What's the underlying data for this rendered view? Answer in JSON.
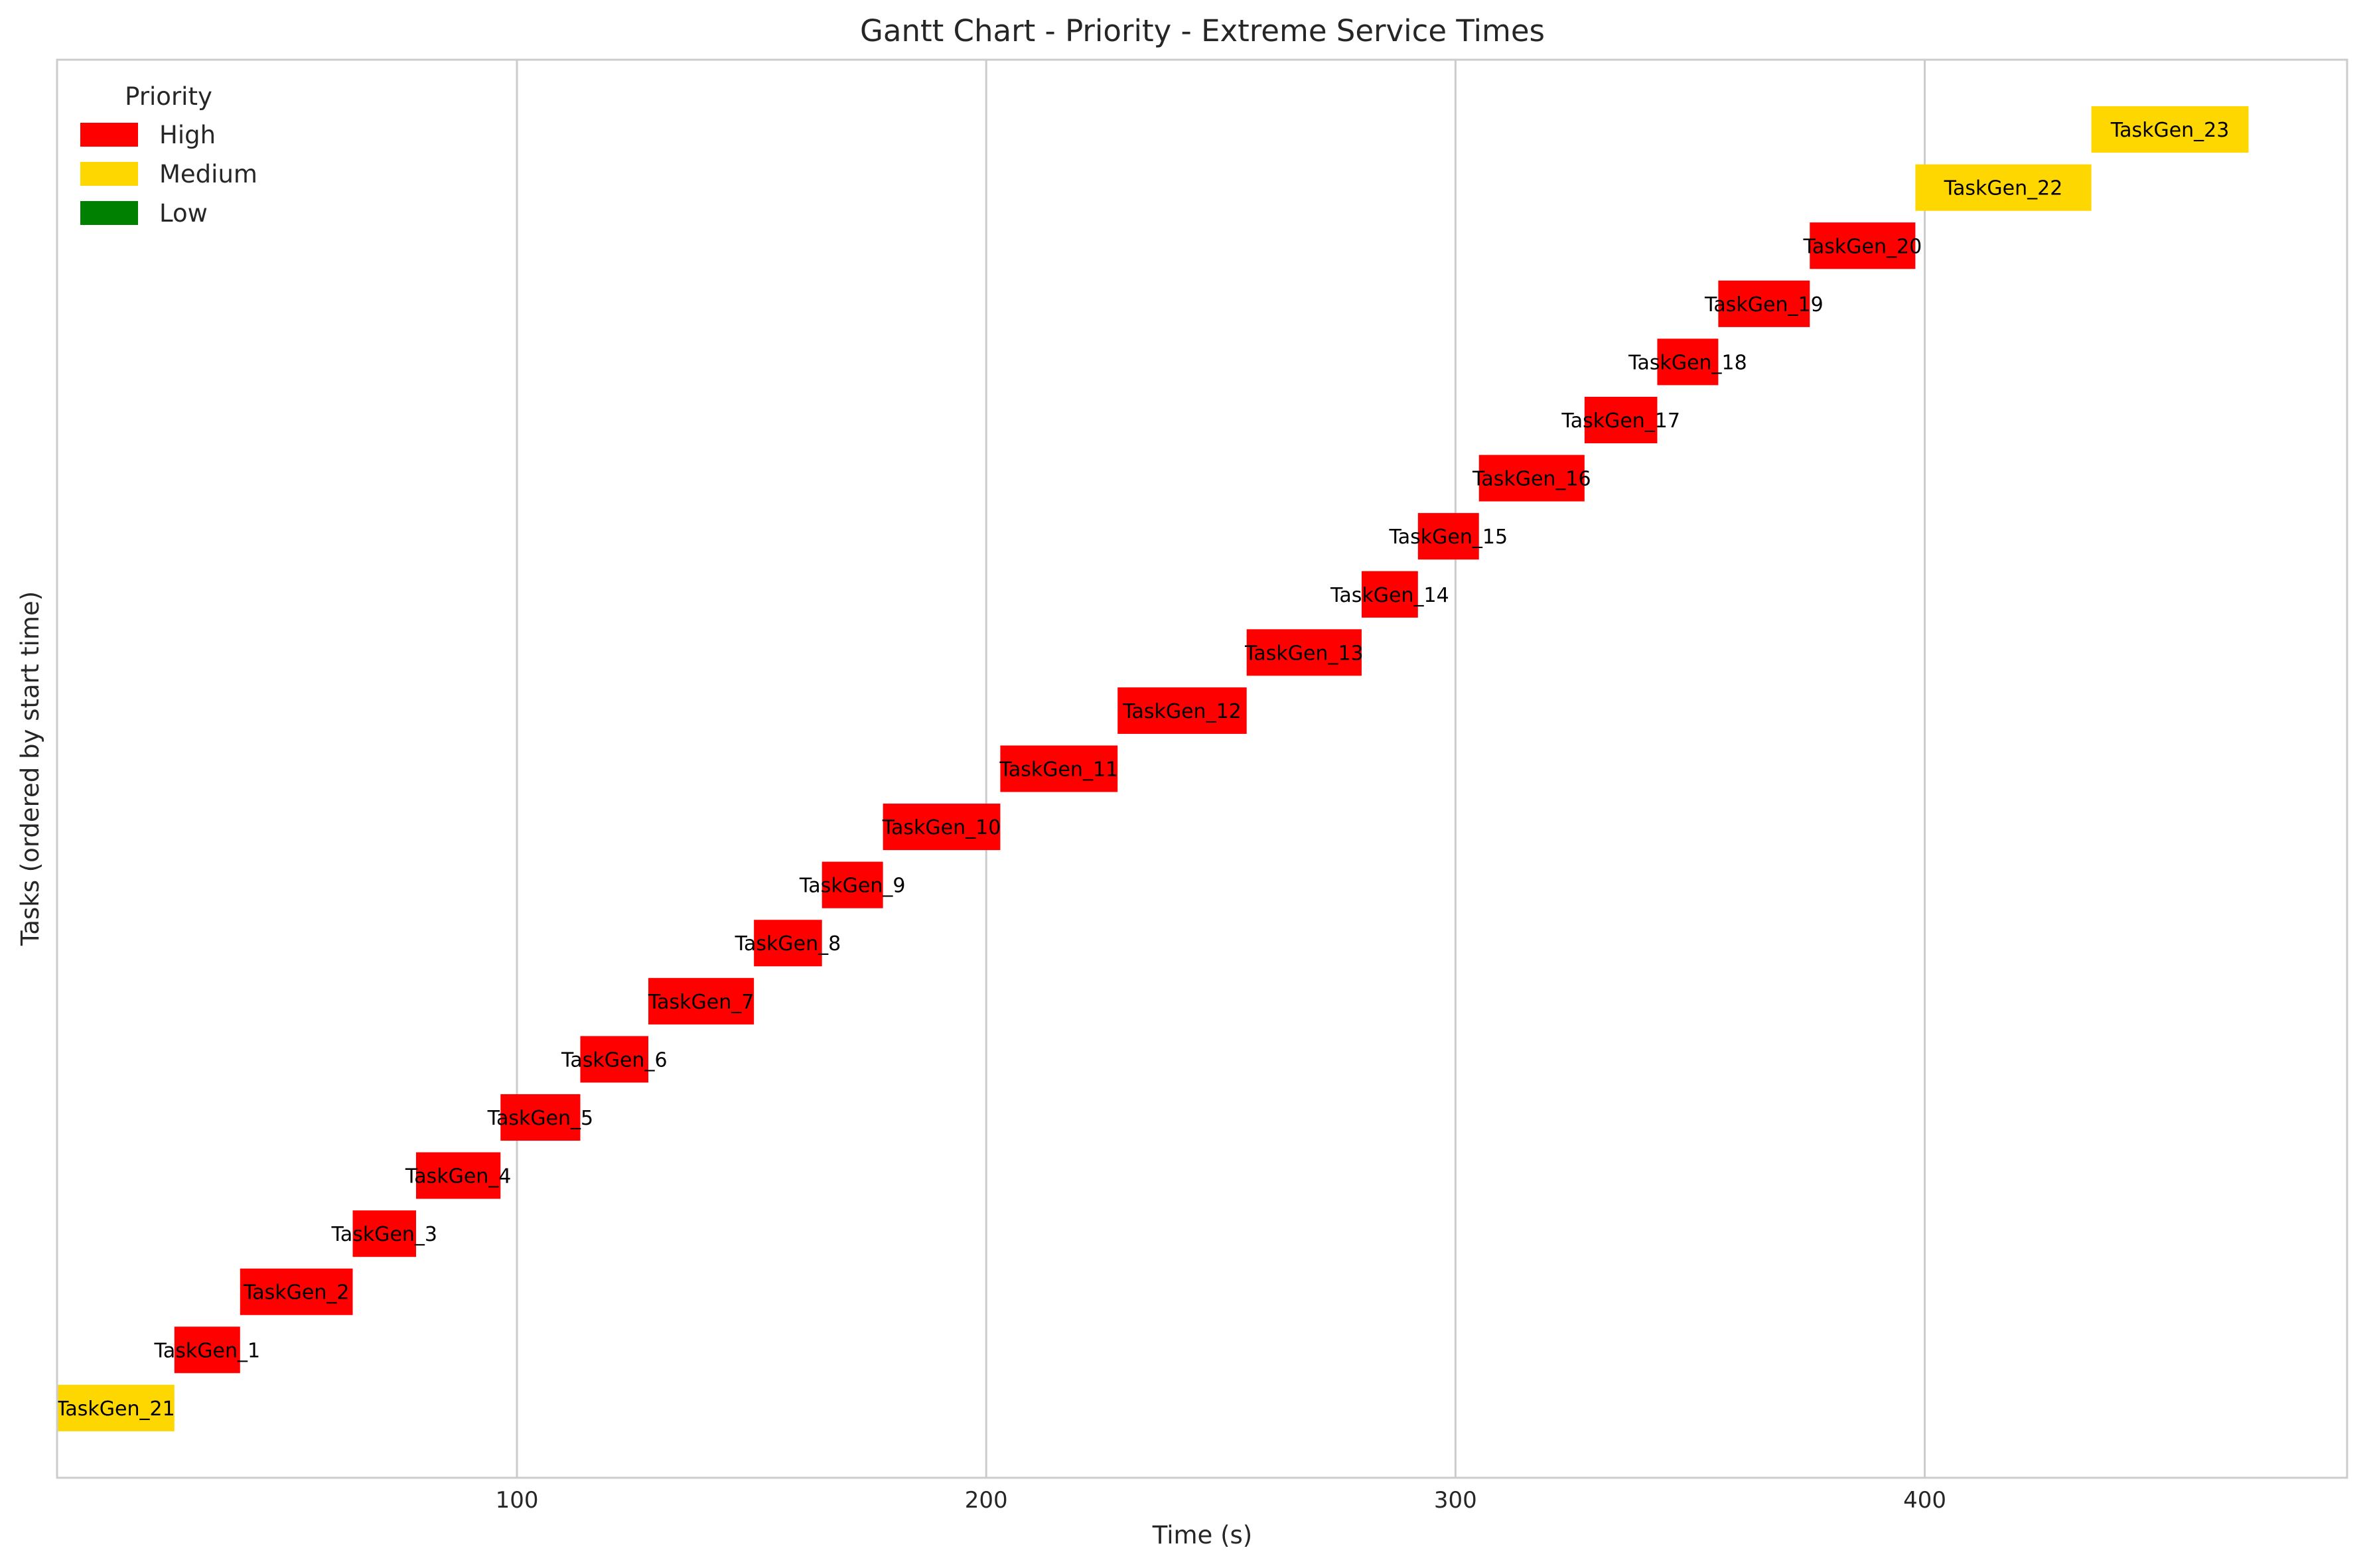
{
  "chart_data": {
    "type": "gantt",
    "title": "Gantt Chart - Priority - Extreme Service Times",
    "xlabel": "Time (s)",
    "ylabel": "Tasks (ordered by start time)",
    "xlim": [
      2,
      490
    ],
    "xticks": [
      100,
      200,
      300,
      400
    ],
    "grid": "vertical",
    "legend": {
      "title": "Priority",
      "placement": "top-left",
      "entries": [
        {
          "label": "High",
          "color": "#ff0000"
        },
        {
          "label": "Medium",
          "color": "#ffd700"
        },
        {
          "label": "Low",
          "color": "#008000"
        }
      ]
    },
    "tasks": [
      {
        "name": "TaskGen_21",
        "start": 2,
        "end": 27,
        "priority": "Medium"
      },
      {
        "name": "TaskGen_1",
        "start": 27,
        "end": 41,
        "priority": "High"
      },
      {
        "name": "TaskGen_2",
        "start": 41,
        "end": 65,
        "priority": "High"
      },
      {
        "name": "TaskGen_3",
        "start": 65,
        "end": 78.5,
        "priority": "High"
      },
      {
        "name": "TaskGen_4",
        "start": 78.5,
        "end": 96.5,
        "priority": "High"
      },
      {
        "name": "TaskGen_5",
        "start": 96.5,
        "end": 113.5,
        "priority": "High"
      },
      {
        "name": "TaskGen_6",
        "start": 113.5,
        "end": 128,
        "priority": "High"
      },
      {
        "name": "TaskGen_7",
        "start": 128,
        "end": 150.5,
        "priority": "High"
      },
      {
        "name": "TaskGen_8",
        "start": 150.5,
        "end": 165,
        "priority": "High"
      },
      {
        "name": "TaskGen_9",
        "start": 165,
        "end": 178,
        "priority": "High"
      },
      {
        "name": "TaskGen_10",
        "start": 178,
        "end": 203,
        "priority": "High"
      },
      {
        "name": "TaskGen_11",
        "start": 203,
        "end": 228,
        "priority": "High"
      },
      {
        "name": "TaskGen_12",
        "start": 228,
        "end": 255.5,
        "priority": "High"
      },
      {
        "name": "TaskGen_13",
        "start": 255.5,
        "end": 280,
        "priority": "High"
      },
      {
        "name": "TaskGen_14",
        "start": 280,
        "end": 292,
        "priority": "High"
      },
      {
        "name": "TaskGen_15",
        "start": 292,
        "end": 305,
        "priority": "High"
      },
      {
        "name": "TaskGen_16",
        "start": 305,
        "end": 327.5,
        "priority": "High"
      },
      {
        "name": "TaskGen_17",
        "start": 327.5,
        "end": 343,
        "priority": "High"
      },
      {
        "name": "TaskGen_18",
        "start": 343,
        "end": 356,
        "priority": "High"
      },
      {
        "name": "TaskGen_19",
        "start": 356,
        "end": 375.5,
        "priority": "High"
      },
      {
        "name": "TaskGen_20",
        "start": 375.5,
        "end": 398,
        "priority": "High"
      },
      {
        "name": "TaskGen_22",
        "start": 398,
        "end": 435.5,
        "priority": "Medium"
      },
      {
        "name": "TaskGen_23",
        "start": 435.5,
        "end": 469,
        "priority": "Medium"
      }
    ]
  }
}
